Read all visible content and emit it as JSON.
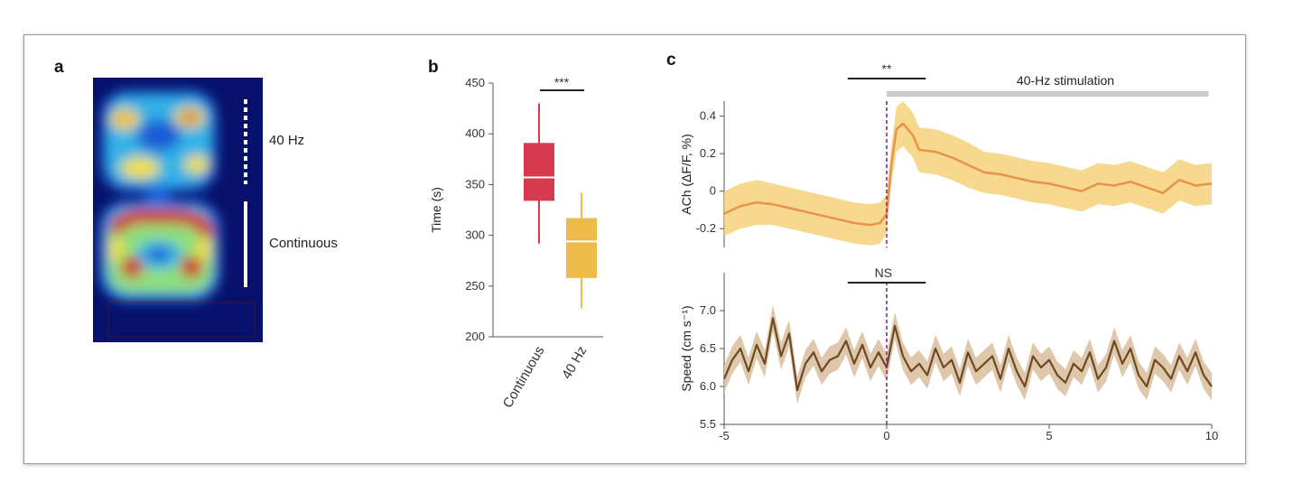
{
  "panels": {
    "a": {
      "letter": "a",
      "heatmap_labels": [
        "40 Hz",
        "Continuous"
      ],
      "colorscale": [
        "#07116b",
        "#1f5bd6",
        "#33b2e6",
        "#8fe07a",
        "#f2e03c",
        "#f08a2a",
        "#cf2323"
      ]
    },
    "b": {
      "letter": "b",
      "significance": "***"
    },
    "c": {
      "letter": "c",
      "top_significance": "**",
      "stim_label": "40-Hz stimulation",
      "bottom_significance": "NS"
    }
  },
  "chart_data": [
    {
      "type": "box",
      "panel": "b",
      "categories": [
        "Continuous",
        "40 Hz"
      ],
      "ylabel": "Time (s)",
      "ylim": [
        200,
        450
      ],
      "yticks": [
        200,
        250,
        300,
        350,
        400,
        450
      ],
      "boxes": [
        {
          "name": "Continuous",
          "whisker_low": 292,
          "q1": 334,
          "median": 357,
          "q3": 391,
          "whisker_high": 430,
          "color": "#d63a4f"
        },
        {
          "name": "40 Hz",
          "whisker_low": 228,
          "q1": 258,
          "median": 294,
          "q3": 317,
          "whisker_high": 342,
          "color": "#edbb4a"
        }
      ]
    },
    {
      "type": "line",
      "panel": "c-top",
      "ylabel": "ACh (ΔF/F, %)",
      "xlim": [
        -5,
        10
      ],
      "ylim": [
        -0.3,
        0.48
      ],
      "yticks": [
        -0.2,
        0,
        0.2,
        0.4
      ],
      "color": "#e8924a",
      "band_color": "#f5d27a",
      "x": [
        -5,
        -4.5,
        -4,
        -3.5,
        -3,
        -2.5,
        -2,
        -1.5,
        -1,
        -0.5,
        -0.2,
        0,
        0.15,
        0.3,
        0.5,
        0.8,
        1,
        1.5,
        2,
        2.5,
        3,
        3.5,
        4,
        4.5,
        5,
        5.5,
        6,
        6.5,
        7,
        7.5,
        8,
        8.5,
        9,
        9.5,
        10
      ],
      "y": [
        -0.12,
        -0.08,
        -0.06,
        -0.07,
        -0.09,
        -0.11,
        -0.13,
        -0.15,
        -0.17,
        -0.18,
        -0.17,
        -0.12,
        0.15,
        0.33,
        0.36,
        0.3,
        0.22,
        0.21,
        0.18,
        0.14,
        0.1,
        0.09,
        0.07,
        0.05,
        0.04,
        0.02,
        0.0,
        0.04,
        0.03,
        0.05,
        0.02,
        -0.01,
        0.06,
        0.03,
        0.04
      ],
      "band": [
        0.12,
        0.12,
        0.12,
        0.11,
        0.11,
        0.11,
        0.11,
        0.11,
        0.11,
        0.11,
        0.11,
        0.1,
        0.1,
        0.12,
        0.12,
        0.12,
        0.12,
        0.12,
        0.12,
        0.12,
        0.11,
        0.11,
        0.11,
        0.11,
        0.11,
        0.11,
        0.11,
        0.11,
        0.11,
        0.11,
        0.11,
        0.11,
        0.11,
        0.11,
        0.11
      ]
    },
    {
      "type": "line",
      "panel": "c-bottom",
      "ylabel": "Speed (cm s⁻¹)",
      "xlim": [
        -5,
        10
      ],
      "xticks": [
        -5,
        0,
        5,
        10
      ],
      "ylim": [
        5.5,
        7.5
      ],
      "yticks": [
        5.5,
        6.0,
        6.5,
        7.0
      ],
      "color": "#6b4a22",
      "band_color": "#dcc1a3",
      "x": [
        -5,
        -4.75,
        -4.5,
        -4.25,
        -4,
        -3.75,
        -3.5,
        -3.25,
        -3,
        -2.75,
        -2.5,
        -2.25,
        -2,
        -1.75,
        -1.5,
        -1.25,
        -1,
        -0.75,
        -0.5,
        -0.25,
        0,
        0.25,
        0.5,
        0.75,
        1,
        1.25,
        1.5,
        1.75,
        2,
        2.25,
        2.5,
        2.75,
        3,
        3.25,
        3.5,
        3.75,
        4,
        4.25,
        4.5,
        4.75,
        5,
        5.25,
        5.5,
        5.75,
        6,
        6.25,
        6.5,
        6.75,
        7,
        7.25,
        7.5,
        7.75,
        8,
        8.25,
        8.5,
        8.75,
        9,
        9.25,
        9.5,
        9.75,
        10
      ],
      "y": [
        6.1,
        6.35,
        6.5,
        6.2,
        6.55,
        6.3,
        6.9,
        6.4,
        6.7,
        5.95,
        6.3,
        6.45,
        6.2,
        6.35,
        6.4,
        6.6,
        6.3,
        6.55,
        6.25,
        6.45,
        6.25,
        6.8,
        6.4,
        6.2,
        6.3,
        6.15,
        6.5,
        6.25,
        6.35,
        6.05,
        6.45,
        6.2,
        6.3,
        6.4,
        6.1,
        6.5,
        6.2,
        6.0,
        6.4,
        6.25,
        6.35,
        6.15,
        6.05,
        6.3,
        6.2,
        6.45,
        6.1,
        6.25,
        6.6,
        6.3,
        6.5,
        6.15,
        6.0,
        6.35,
        6.25,
        6.1,
        6.4,
        6.2,
        6.45,
        6.15,
        6.0
      ],
      "band": 0.18
    }
  ]
}
